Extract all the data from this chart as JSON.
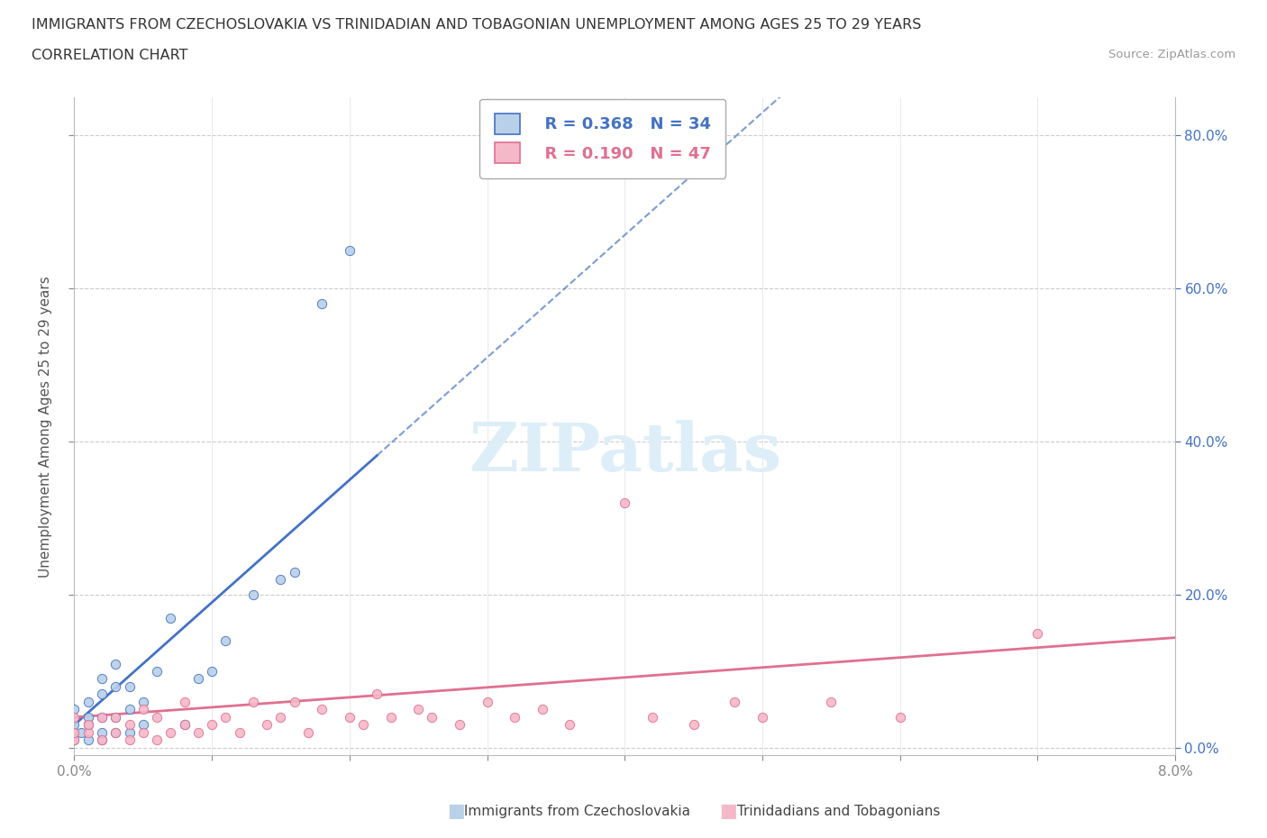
{
  "title_line1": "IMMIGRANTS FROM CZECHOSLOVAKIA VS TRINIDADIAN AND TOBAGONIAN UNEMPLOYMENT AMONG AGES 25 TO 29 YEARS",
  "title_line2": "CORRELATION CHART",
  "source_text": "Source: ZipAtlas.com",
  "ylabel": "Unemployment Among Ages 25 to 29 years",
  "legend_r1": "R = 0.368",
  "legend_n1": "N = 34",
  "legend_r2": "R = 0.190",
  "legend_n2": "N = 47",
  "color_blue": "#b8d0e8",
  "color_pink": "#f5b8c8",
  "color_blue_text": "#4472c4",
  "color_pink_text": "#e07090",
  "watermark_color": "#ddeef8",
  "label1": "Immigrants from Czechoslovakia",
  "label2": "Trinidadians and Tobagonians",
  "blue_x": [
    0.0,
    0.0,
    0.0,
    0.0,
    0.0005,
    0.001,
    0.001,
    0.001,
    0.001,
    0.002,
    0.002,
    0.002,
    0.002,
    0.002,
    0.003,
    0.003,
    0.003,
    0.003,
    0.004,
    0.004,
    0.004,
    0.005,
    0.005,
    0.006,
    0.007,
    0.008,
    0.009,
    0.01,
    0.011,
    0.013,
    0.015,
    0.016,
    0.018,
    0.02
  ],
  "blue_y": [
    0.01,
    0.02,
    0.03,
    0.05,
    0.02,
    0.01,
    0.03,
    0.04,
    0.06,
    0.01,
    0.02,
    0.04,
    0.07,
    0.09,
    0.02,
    0.04,
    0.08,
    0.11,
    0.02,
    0.05,
    0.08,
    0.03,
    0.06,
    0.1,
    0.17,
    0.03,
    0.09,
    0.1,
    0.14,
    0.2,
    0.22,
    0.23,
    0.58,
    0.65
  ],
  "pink_x": [
    0.0,
    0.0,
    0.0,
    0.001,
    0.001,
    0.002,
    0.002,
    0.003,
    0.003,
    0.004,
    0.004,
    0.005,
    0.005,
    0.006,
    0.006,
    0.007,
    0.008,
    0.008,
    0.009,
    0.01,
    0.011,
    0.012,
    0.013,
    0.014,
    0.015,
    0.016,
    0.017,
    0.018,
    0.02,
    0.021,
    0.022,
    0.023,
    0.025,
    0.026,
    0.028,
    0.03,
    0.032,
    0.034,
    0.036,
    0.04,
    0.042,
    0.045,
    0.048,
    0.05,
    0.055,
    0.06,
    0.07
  ],
  "pink_y": [
    0.01,
    0.02,
    0.04,
    0.02,
    0.03,
    0.01,
    0.04,
    0.02,
    0.04,
    0.01,
    0.03,
    0.02,
    0.05,
    0.01,
    0.04,
    0.02,
    0.03,
    0.06,
    0.02,
    0.03,
    0.04,
    0.02,
    0.06,
    0.03,
    0.04,
    0.06,
    0.02,
    0.05,
    0.04,
    0.03,
    0.07,
    0.04,
    0.05,
    0.04,
    0.03,
    0.06,
    0.04,
    0.05,
    0.03,
    0.32,
    0.04,
    0.03,
    0.06,
    0.04,
    0.06,
    0.04,
    0.15
  ],
  "xmin": 0.0,
  "xmax": 0.08,
  "ymin": -0.01,
  "ymax": 0.85,
  "xticks": [
    0.0,
    0.01,
    0.02,
    0.03,
    0.04,
    0.05,
    0.06,
    0.07,
    0.08
  ],
  "yticks": [
    0.0,
    0.2,
    0.4,
    0.6,
    0.8
  ],
  "right_ytick_labels": [
    "0.0%",
    "20.0%",
    "40.0%",
    "60.0%",
    "80.0%"
  ],
  "blue_trend_slope": 16.0,
  "blue_trend_intercept": 0.03,
  "pink_trend_slope": 1.3,
  "pink_trend_intercept": 0.04
}
